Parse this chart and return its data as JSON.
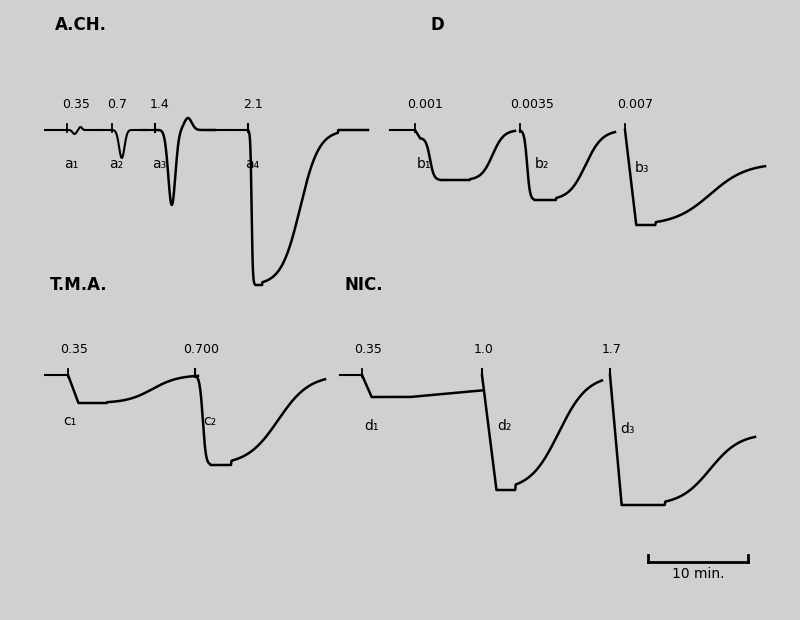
{
  "bg_color": "#e8e8e8",
  "line_color": "#000000",
  "text_color": "#000000",
  "title_ACH": "A.CH.",
  "title_D": "D",
  "title_TMA": "T.M.A.",
  "title_NIC": "NIC.",
  "labels_a": [
    "a₁",
    "a₂",
    "a₃",
    "a₄"
  ],
  "labels_b": [
    "b₁",
    "b₂",
    "b₃"
  ],
  "labels_c": [
    "c₁",
    "c₂"
  ],
  "labels_d": [
    "d₁",
    "d₂",
    "d₃"
  ],
  "dose_a": [
    "0.35",
    "0.7",
    "1.4",
    "2.1"
  ],
  "dose_b": [
    "0.001",
    "0.0035",
    "0.007"
  ],
  "dose_c": [
    "0.35",
    "0.700"
  ],
  "dose_d": [
    "0.35",
    "1.0",
    "1.7"
  ],
  "scalebar_label": "10 min.",
  "figsize": [
    8.0,
    6.2
  ],
  "dpi": 100
}
